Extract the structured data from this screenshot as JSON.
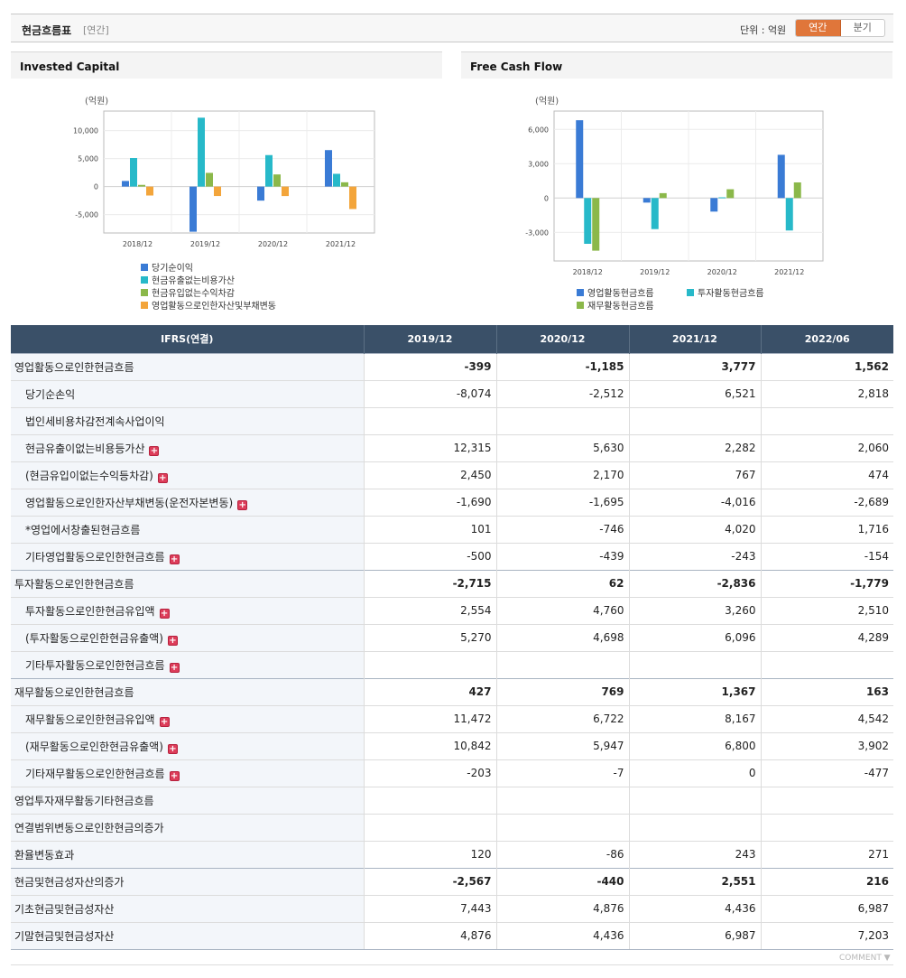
{
  "header": {
    "title": "현금흐름표",
    "period": "[연간]",
    "unit": "단위 : 억원",
    "toggle": [
      "연간",
      "분기"
    ]
  },
  "chart_data": [
    {
      "type": "bar",
      "title": "Invested Capital",
      "ylabel": "(억원)",
      "categories": [
        "2018/12",
        "2019/12",
        "2020/12",
        "2021/12"
      ],
      "series": [
        {
          "name": "당기순이익",
          "color": "#3a7bd5",
          "values": [
            1000,
            -8074,
            -2512,
            6521
          ]
        },
        {
          "name": "현금유출없는비용가산",
          "color": "#27b9c9",
          "values": [
            5100,
            12315,
            5630,
            2282
          ]
        },
        {
          "name": "현금유입없는수익차감",
          "color": "#8bb84a",
          "values": [
            300,
            2450,
            2170,
            767
          ]
        },
        {
          "name": "영업활동으로인한자산및부채변동",
          "color": "#f3a53b",
          "values": [
            -1600,
            -1690,
            -1695,
            -4016
          ]
        }
      ],
      "yticks": [
        10000,
        5000,
        0,
        -5000
      ],
      "yticklabels": [
        "10,000",
        "5,000",
        "0",
        "-5,000"
      ],
      "ylim": [
        -8300,
        13500
      ],
      "grid": true,
      "legend": "bottom"
    },
    {
      "type": "bar",
      "title": "Free Cash Flow",
      "ylabel": "(억원)",
      "categories": [
        "2018/12",
        "2019/12",
        "2020/12",
        "2021/12"
      ],
      "series": [
        {
          "name": "영업활동현금흐름",
          "color": "#3a7bd5",
          "values": [
            6800,
            -399,
            -1185,
            3777
          ]
        },
        {
          "name": "투자활동현금흐름",
          "color": "#27b9c9",
          "values": [
            -4000,
            -2715,
            62,
            -2836
          ]
        },
        {
          "name": "재무활동현금흐름",
          "color": "#8bb84a",
          "values": [
            -4600,
            427,
            769,
            1367
          ]
        }
      ],
      "yticks": [
        6000,
        3000,
        0,
        -3000
      ],
      "yticklabels": [
        "6,000",
        "3,000",
        "0",
        "-3,000"
      ],
      "ylim": [
        -5500,
        7600
      ],
      "grid": true,
      "legend": "bottom"
    }
  ],
  "table": {
    "columns": [
      "IFRS(연결)",
      "2019/12",
      "2020/12",
      "2021/12",
      "2022/06"
    ],
    "rows": [
      {
        "label": "영업활동으로인한현금흐름",
        "values": [
          "-399",
          "-1,185",
          "3,777",
          "1,562"
        ],
        "level": "main",
        "plus": false
      },
      {
        "label": "당기순손익",
        "values": [
          "-8,074",
          "-2,512",
          "6,521",
          "2,818"
        ],
        "level": "sub",
        "plus": false
      },
      {
        "label": "법인세비용차감전계속사업이익",
        "values": [
          "",
          "",
          "",
          ""
        ],
        "level": "sub",
        "plus": false
      },
      {
        "label": "현금유출이없는비용등가산",
        "values": [
          "12,315",
          "5,630",
          "2,282",
          "2,060"
        ],
        "level": "sub",
        "plus": true
      },
      {
        "label": "(현금유입이없는수익등차감)",
        "values": [
          "2,450",
          "2,170",
          "767",
          "474"
        ],
        "level": "sub",
        "plus": true
      },
      {
        "label": "영업활동으로인한자산부채변동(운전자본변동)",
        "values": [
          "-1,690",
          "-1,695",
          "-4,016",
          "-2,689"
        ],
        "level": "sub",
        "plus": true
      },
      {
        "label": "*영업에서창출된현금흐름",
        "values": [
          "101",
          "-746",
          "4,020",
          "1,716"
        ],
        "level": "sub",
        "plus": false
      },
      {
        "label": "기타영업활동으로인한현금흐름",
        "values": [
          "-500",
          "-439",
          "-243",
          "-154"
        ],
        "level": "sub",
        "plus": true
      },
      {
        "label": "투자활동으로인한현금흐름",
        "values": [
          "-2,715",
          "62",
          "-2,836",
          "-1,779"
        ],
        "level": "main",
        "plus": false
      },
      {
        "label": "투자활동으로인한현금유입액",
        "values": [
          "2,554",
          "4,760",
          "3,260",
          "2,510"
        ],
        "level": "sub",
        "plus": true
      },
      {
        "label": "(투자활동으로인한현금유출액)",
        "values": [
          "5,270",
          "4,698",
          "6,096",
          "4,289"
        ],
        "level": "sub",
        "plus": true
      },
      {
        "label": "기타투자활동으로인한현금흐름",
        "values": [
          "",
          "",
          "",
          ""
        ],
        "level": "sub",
        "plus": true
      },
      {
        "label": "재무활동으로인한현금흐름",
        "values": [
          "427",
          "769",
          "1,367",
          "163"
        ],
        "level": "main",
        "plus": false
      },
      {
        "label": "재무활동으로인한현금유입액",
        "values": [
          "11,472",
          "6,722",
          "8,167",
          "4,542"
        ],
        "level": "sub",
        "plus": true
      },
      {
        "label": "(재무활동으로인한현금유출액)",
        "values": [
          "10,842",
          "5,947",
          "6,800",
          "3,902"
        ],
        "level": "sub",
        "plus": true
      },
      {
        "label": "기타재무활동으로인한현금흐름",
        "values": [
          "-203",
          "-7",
          "0",
          "-477"
        ],
        "level": "sub",
        "plus": true
      },
      {
        "label": "영업투자재무활동기타현금흐름",
        "values": [
          "",
          "",
          "",
          ""
        ],
        "level": "top",
        "plus": false
      },
      {
        "label": "연결범위변동으로인한현금의증가",
        "values": [
          "",
          "",
          "",
          ""
        ],
        "level": "top",
        "plus": false
      },
      {
        "label": "환율변동효과",
        "values": [
          "120",
          "-86",
          "243",
          "271"
        ],
        "level": "top",
        "plus": false
      },
      {
        "label": "현금및현금성자산의증가",
        "values": [
          "-2,567",
          "-440",
          "2,551",
          "216"
        ],
        "level": "main",
        "plus": false
      },
      {
        "label": "기초현금및현금성자산",
        "values": [
          "7,443",
          "4,876",
          "4,436",
          "6,987"
        ],
        "level": "top",
        "plus": false
      },
      {
        "label": "기말현금및현금성자산",
        "values": [
          "4,876",
          "4,436",
          "6,987",
          "7,203"
        ],
        "level": "top",
        "plus": false
      }
    ]
  },
  "footer": {
    "comment": "COMMENT ▼"
  }
}
